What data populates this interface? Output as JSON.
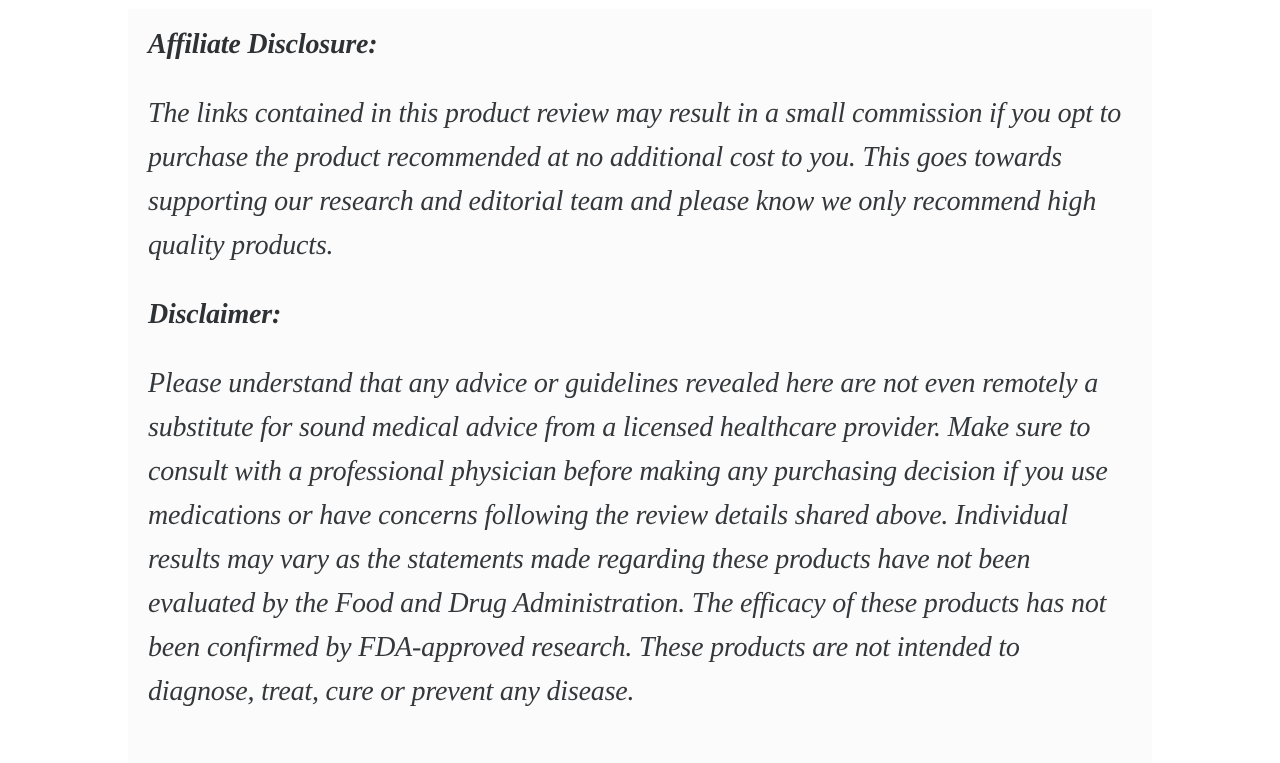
{
  "page": {
    "background_color": "#ffffff",
    "content_background_color": "#fbfbfb",
    "text_color": "#333333"
  },
  "sections": [
    {
      "heading": "Affiliate Disclosure:",
      "paragraph": "The links contained in this product review may result in a small commission if you opt to purchase the product recommended at no additional cost to you. This goes towards supporting our research and editorial team and please know we only recommend high quality products."
    },
    {
      "heading": "Disclaimer:",
      "paragraph": "Please understand that any advice or guidelines revealed here are not even remotely a substitute for sound medical advice from a licensed healthcare provider. Make sure to consult with a professional physician before making any purchasing decision if you use medications or have concerns following the review details shared above. Individual results may vary as the statements made regarding these products have not been evaluated by the Food and Drug Administration. The efficacy of these products has not been confirmed by FDA-approved research. These products are not intended to diagnose, treat, cure or prevent any disease."
    }
  ]
}
